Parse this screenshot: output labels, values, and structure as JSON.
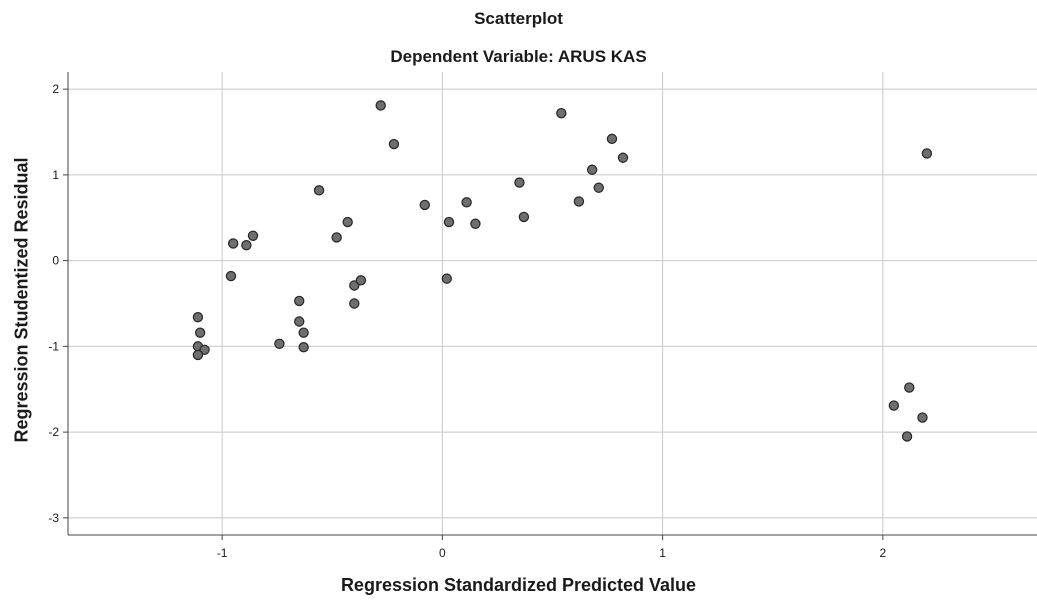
{
  "chart_data": {
    "type": "scatter",
    "title": "Scatterplot",
    "subtitle": "Dependent Variable: ARUS KAS",
    "xlabel": "Regression Standardized Predicted Value",
    "ylabel": "Regression Studentized Residual",
    "xlim": [
      -1.7,
      2.7
    ],
    "ylim": [
      -3.2,
      2.2
    ],
    "xticks": [
      -1,
      0,
      1,
      2
    ],
    "yticks": [
      -3,
      -2,
      -1,
      0,
      1,
      2
    ],
    "grid": true,
    "marker_color": "#6e6e6e",
    "marker_edge": "#262626",
    "points": [
      {
        "x": -1.11,
        "y": -0.66
      },
      {
        "x": -1.1,
        "y": -0.84
      },
      {
        "x": -1.11,
        "y": -1.0
      },
      {
        "x": -1.08,
        "y": -1.04
      },
      {
        "x": -1.11,
        "y": -1.1
      },
      {
        "x": -0.95,
        "y": 0.2
      },
      {
        "x": -0.89,
        "y": 0.18
      },
      {
        "x": -0.86,
        "y": 0.29
      },
      {
        "x": -0.96,
        "y": -0.18
      },
      {
        "x": -0.74,
        "y": -0.97
      },
      {
        "x": -0.65,
        "y": -0.47
      },
      {
        "x": -0.65,
        "y": -0.71
      },
      {
        "x": -0.63,
        "y": -0.84
      },
      {
        "x": -0.63,
        "y": -1.01
      },
      {
        "x": -0.56,
        "y": 0.82
      },
      {
        "x": -0.48,
        "y": 0.27
      },
      {
        "x": -0.43,
        "y": 0.45
      },
      {
        "x": -0.4,
        "y": -0.29
      },
      {
        "x": -0.37,
        "y": -0.23
      },
      {
        "x": -0.4,
        "y": -0.5
      },
      {
        "x": -0.28,
        "y": 1.81
      },
      {
        "x": -0.22,
        "y": 1.36
      },
      {
        "x": -0.08,
        "y": 0.65
      },
      {
        "x": 0.02,
        "y": -0.21
      },
      {
        "x": 0.03,
        "y": 0.45
      },
      {
        "x": 0.11,
        "y": 0.68
      },
      {
        "x": 0.15,
        "y": 0.43
      },
      {
        "x": 0.35,
        "y": 0.91
      },
      {
        "x": 0.37,
        "y": 0.51
      },
      {
        "x": 0.54,
        "y": 1.72
      },
      {
        "x": 0.62,
        "y": 0.69
      },
      {
        "x": 0.68,
        "y": 1.06
      },
      {
        "x": 0.71,
        "y": 0.85
      },
      {
        "x": 0.77,
        "y": 1.42
      },
      {
        "x": 0.82,
        "y": 1.2
      },
      {
        "x": 2.05,
        "y": -1.69
      },
      {
        "x": 2.12,
        "y": -1.48
      },
      {
        "x": 2.11,
        "y": -2.05
      },
      {
        "x": 2.18,
        "y": -1.83
      },
      {
        "x": 2.2,
        "y": 1.25
      }
    ]
  }
}
